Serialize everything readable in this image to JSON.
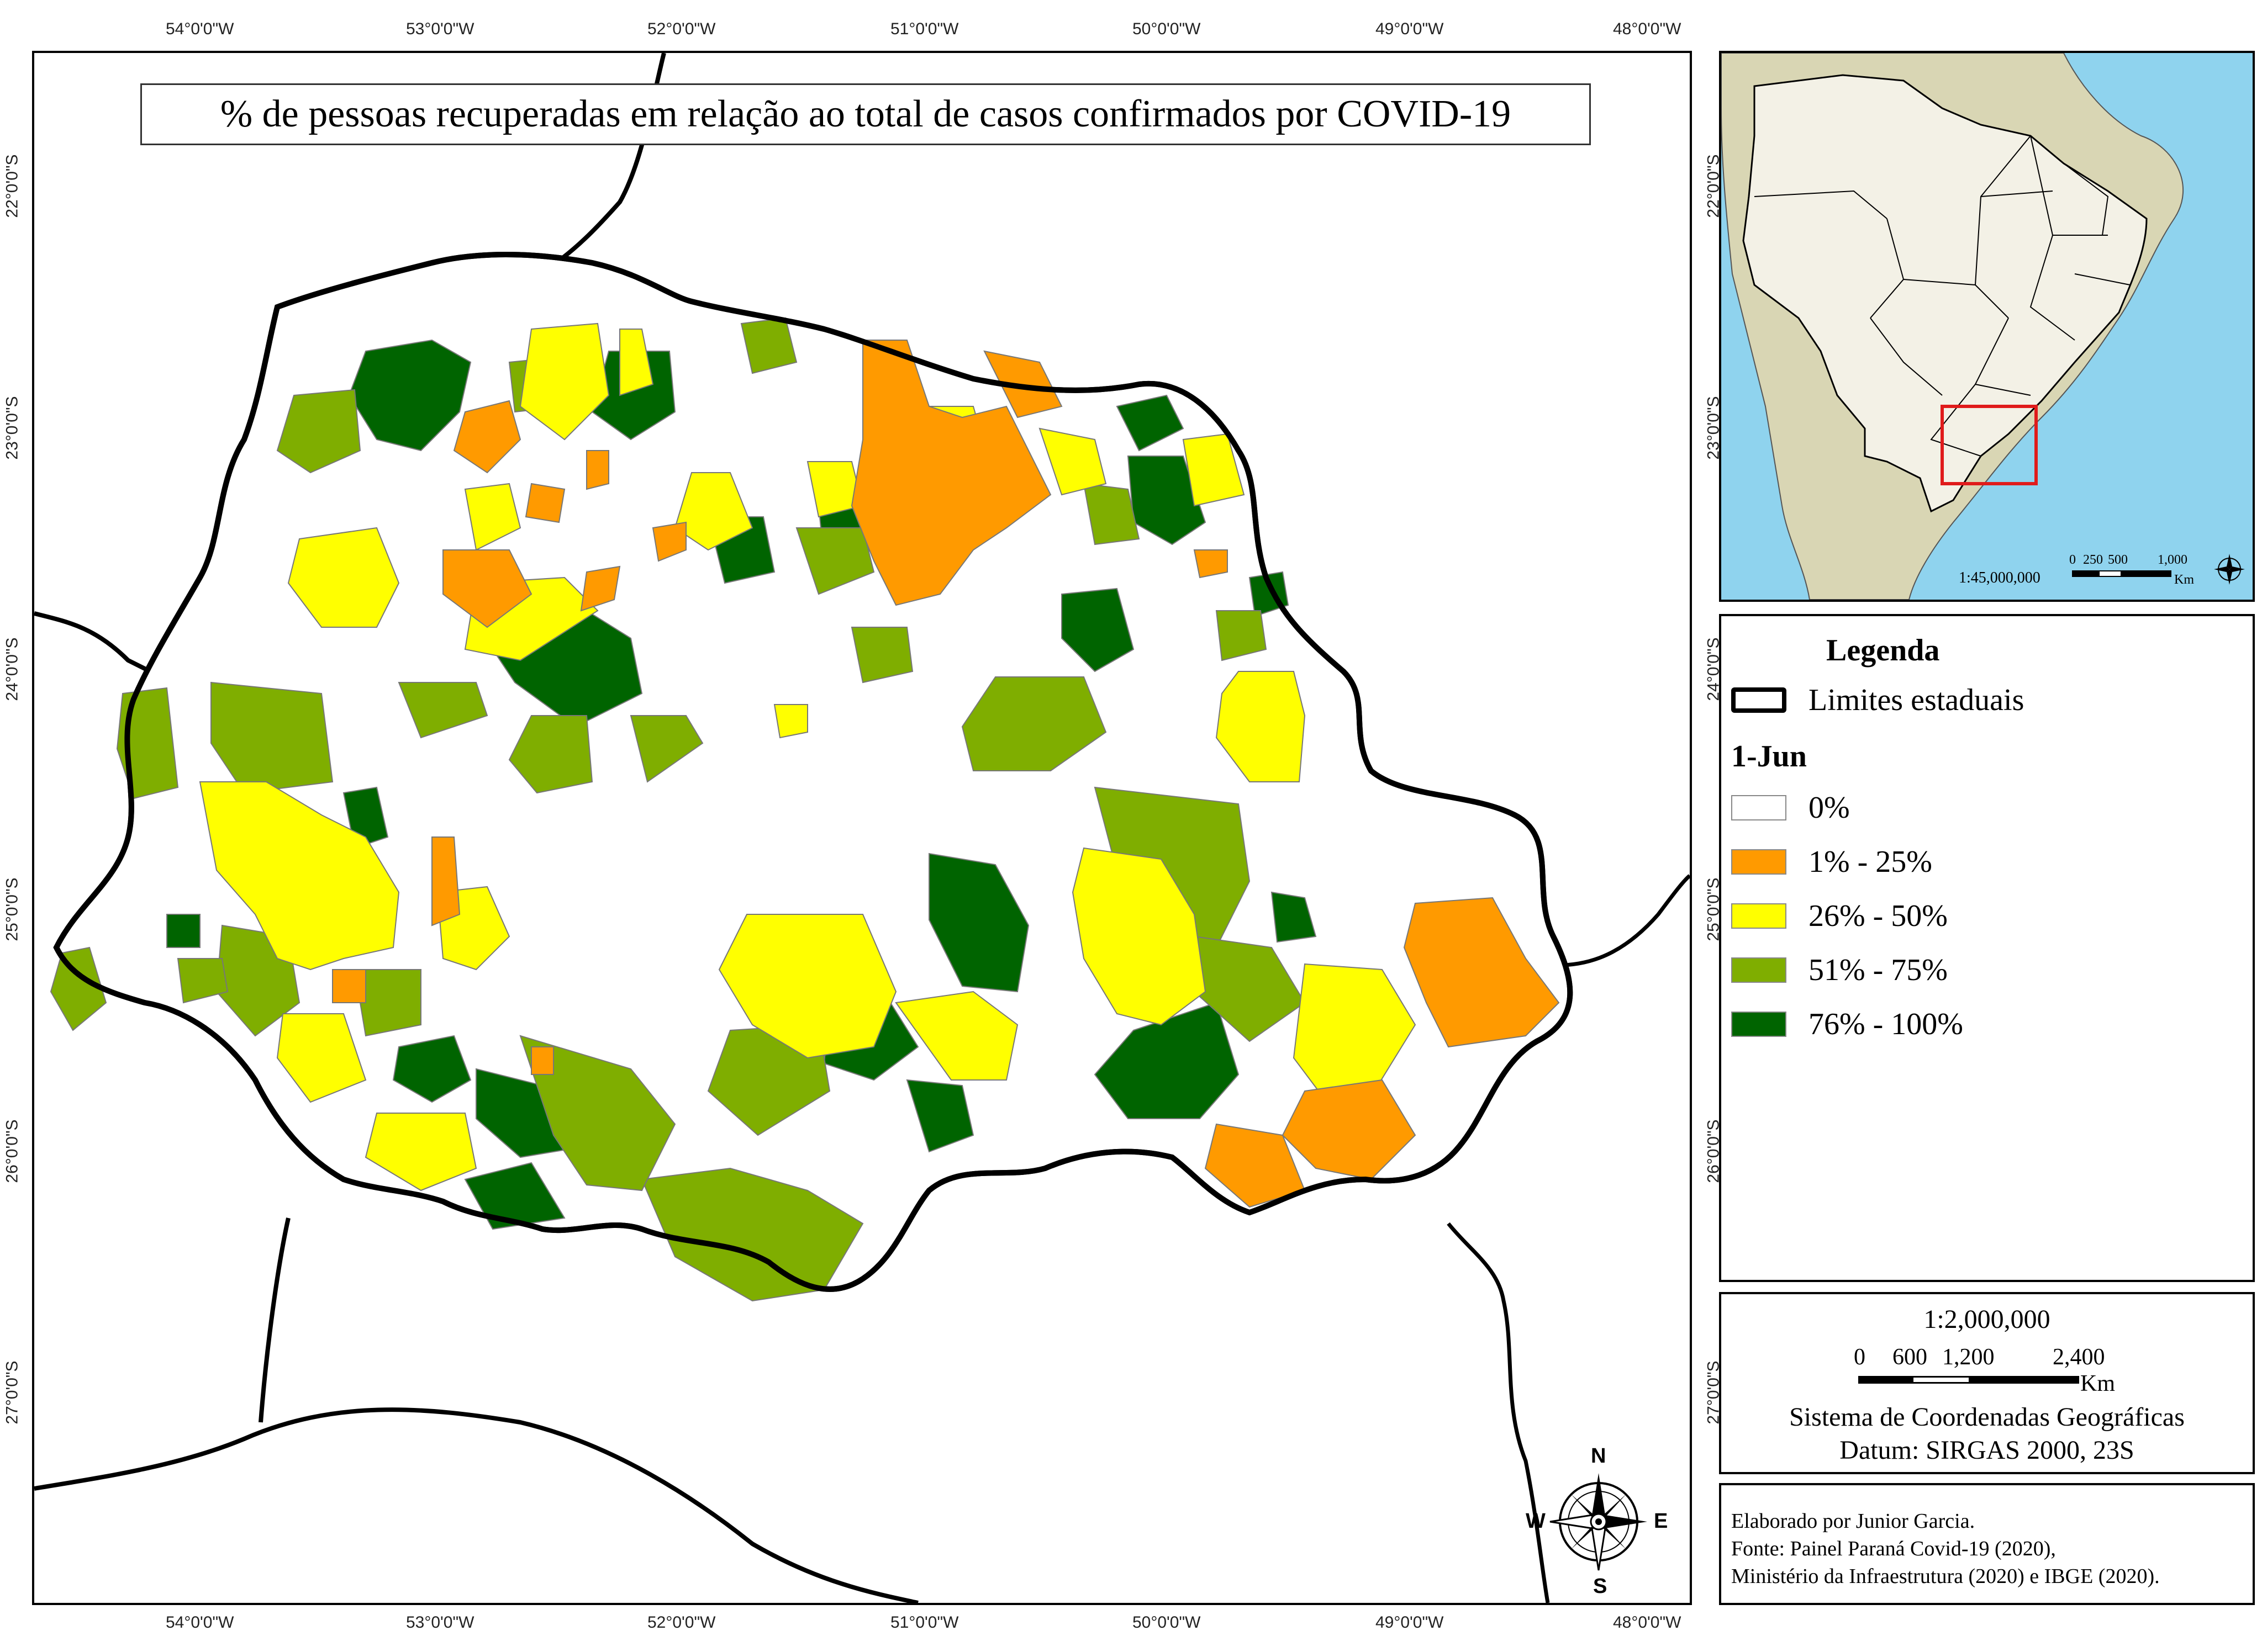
{
  "map": {
    "title": "% de pessoas recuperadas em relação ao total de casos confirmados por COVID-19",
    "longitude_ticks": [
      "54°0'0\"W",
      "53°0'0\"W",
      "52°0'0\"W",
      "51°0'0\"W",
      "50°0'0\"W",
      "49°0'0\"W",
      "48°0'0\"W"
    ],
    "latitude_ticks": [
      "22°0'0\"S",
      "23°0'0\"S",
      "24°0'0\"S",
      "25°0'0\"S",
      "26°0'0\"S",
      "27°0'0\"S"
    ],
    "north_arrow": {
      "n": "N",
      "s": "S",
      "e": "E",
      "w": "W"
    }
  },
  "inset": {
    "latitude_ticks": [
      "22°0'0\"S",
      "23°0'0\"S"
    ],
    "scale_ratio": "1:45,000,000",
    "scale_labels": [
      "0",
      "250",
      "500",
      "1,000"
    ],
    "scale_unit": "Km",
    "colors": {
      "ocean": "#8fd3ee",
      "land": "#d9d6b4",
      "brazil": "#f3f1e6",
      "highlight": "#e01b1b"
    }
  },
  "legend": {
    "title": "Legenda",
    "state_limits_label": "Limites estaduais",
    "date_label": "1-Jun",
    "latitude_ticks": [
      "24°0'0\"S",
      "25°0'0\"S",
      "26°0'0\"S"
    ],
    "classes": [
      {
        "label": "0%",
        "color": "#ffffff"
      },
      {
        "label": "1% - 25%",
        "color": "#ff9a00"
      },
      {
        "label": "26% - 50%",
        "color": "#ffff00"
      },
      {
        "label": "51% - 75%",
        "color": "#7fae00"
      },
      {
        "label": "76% - 100%",
        "color": "#006400"
      }
    ]
  },
  "scale_box": {
    "ratio": "1:2,000,000",
    "labels": [
      "0",
      "600",
      "1,200",
      "2,400"
    ],
    "unit": "Km",
    "crs": "Sistema de Coordenadas Geográficas",
    "datum": "Datum: SIRGAS 2000, 23S",
    "latitude_ticks": [
      "27°0'0\"S"
    ]
  },
  "credits": {
    "author": "Elaborado por Junior Garcia.",
    "source_1": "Fonte: Painel Paraná Covid-19 (2020),",
    "source_2": "Ministério da Infraestrutura (2020) e IBGE (2020)."
  }
}
